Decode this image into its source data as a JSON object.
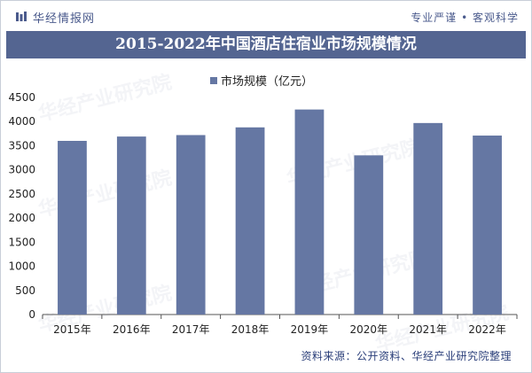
{
  "header": {
    "brand": "华经情报网",
    "slogan": "专业严谨 • 客观科学"
  },
  "title": "2015-2022年中国酒店住宿业市场规模情况",
  "source": "资料来源：公开资料、华经产业研究院整理",
  "watermark": "华经产业研究院",
  "colors": {
    "bar": "#6577a3",
    "title_band": "#546591",
    "axis": "#555555"
  },
  "chart_data": {
    "type": "bar",
    "title": "2015-2022年中国酒店住宿业市场规模情况",
    "categories": [
      "2015年",
      "2016年",
      "2017年",
      "2018年",
      "2019年",
      "2020年",
      "2021年",
      "2022年"
    ],
    "series": [
      {
        "name": "市场规模（亿元）",
        "values": [
          3600,
          3690,
          3720,
          3880,
          4250,
          3300,
          3970,
          3710
        ]
      }
    ],
    "xlabel": "",
    "ylabel": "",
    "ylim": [
      0,
      4500
    ],
    "yticks": [
      0,
      500,
      1000,
      1500,
      2000,
      2500,
      3000,
      3500,
      4000,
      4500
    ],
    "grid": false,
    "legend": "top-center"
  }
}
